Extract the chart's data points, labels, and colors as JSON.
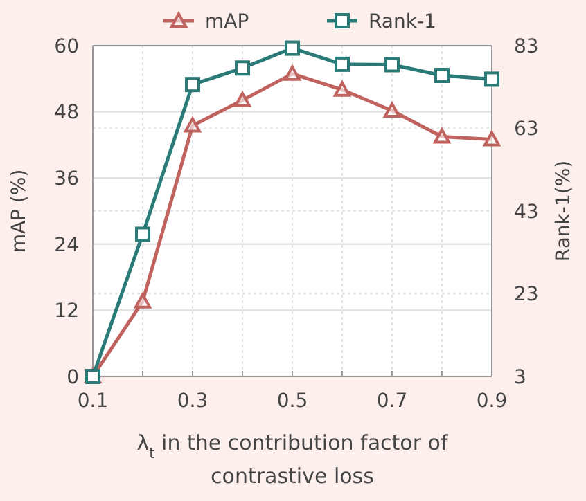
{
  "chart_data": {
    "type": "line",
    "xlabel": "λ$_{t}$ in the contribution factor of contrastive loss",
    "ylabel": "mAP (%)",
    "y2label": "Rank-1(%)",
    "x": [
      0.1,
      0.2,
      0.3,
      0.4,
      0.5,
      0.6,
      0.7,
      0.8,
      0.9
    ],
    "xlim": [
      0.1,
      0.9
    ],
    "xticks": [
      0.1,
      {
        "value": 0.2,
        "label": null
      },
      0.3,
      {
        "value": 0.4,
        "label": null
      },
      0.5,
      {
        "value": 0.6,
        "label": null
      },
      0.7,
      {
        "value": 0.8,
        "label": null
      },
      0.9
    ],
    "ylim": [
      0,
      60
    ],
    "yticks": [
      0,
      12,
      24,
      36,
      48,
      60
    ],
    "y2lim": [
      3,
      83
    ],
    "y2ticks": [
      3,
      23,
      43,
      63,
      83
    ],
    "grid": true,
    "legend": "top",
    "line_style": "solid",
    "series": [
      {
        "name": "mAP",
        "color": "#c0625e",
        "marker": "triangle",
        "values": [
          0,
          13.6,
          45.5,
          50.1,
          54.9,
          52.0,
          48.2,
          43.5,
          43.0
        ]
      },
      {
        "name": "Rank-1",
        "color": "#2a7a78",
        "marker": "square",
        "axis": "y2",
        "values": [
          3,
          37.4,
          73.6,
          77.6,
          82.4,
          78.5,
          78.4,
          75.8,
          74.9
        ]
      }
    ]
  }
}
